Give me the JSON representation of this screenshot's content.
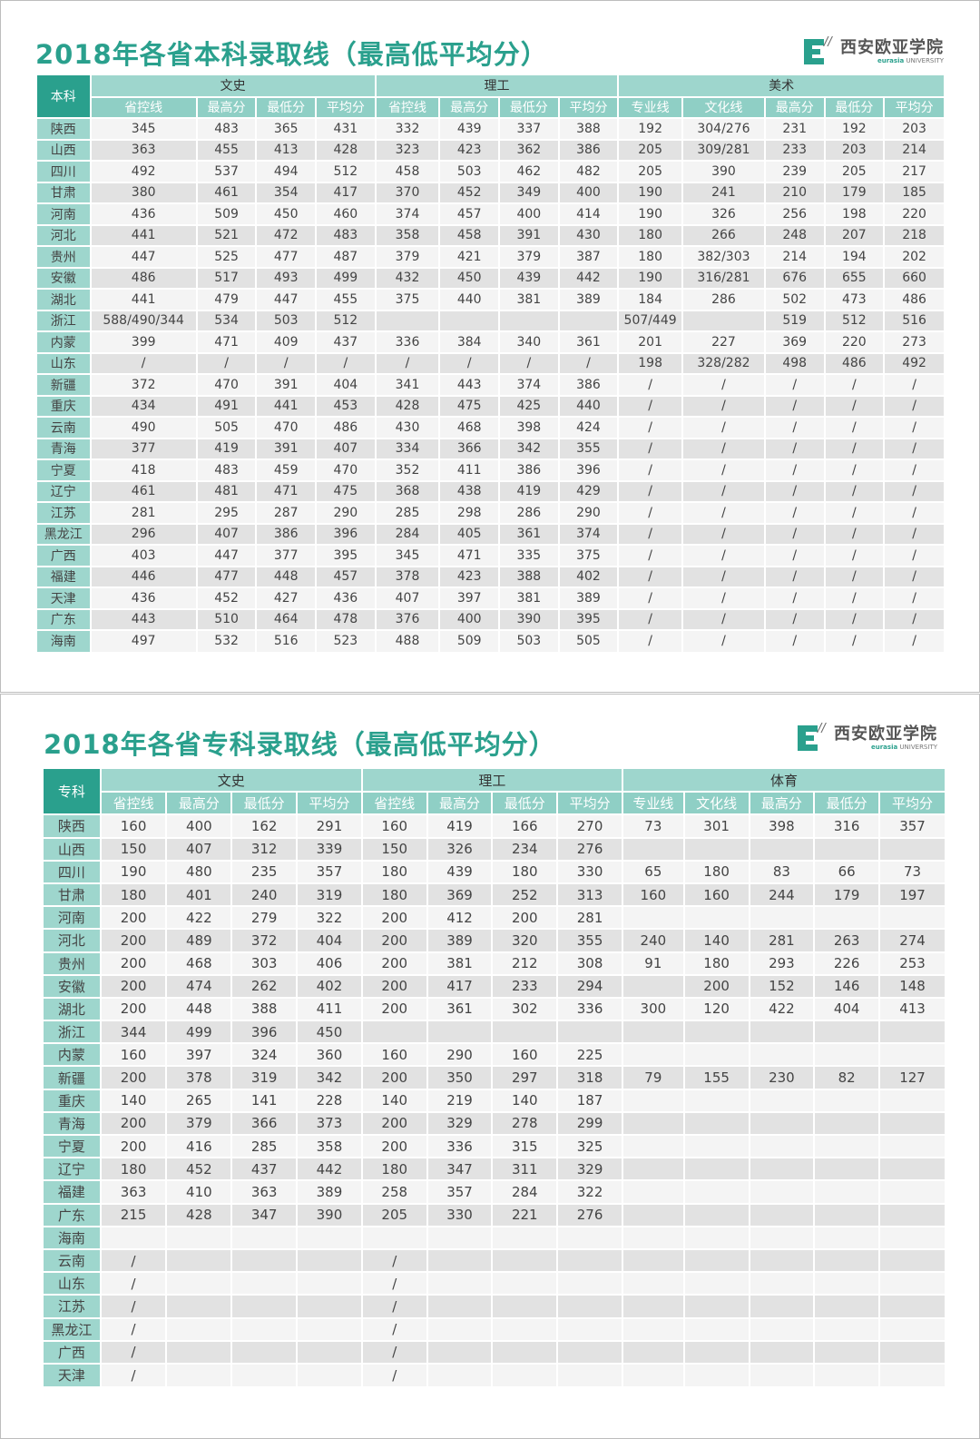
{
  "colors": {
    "teal": "#2aa08d",
    "teal_light": "#9ed6cd",
    "row_light": "#f4f4f4",
    "row_dark": "#e2e2e2"
  },
  "logo": {
    "cn": "西安欧亚学院",
    "en_brand": "eurasia",
    "en_rest": "UNIVERSITY"
  },
  "benke": {
    "title": "2018年各省本科录取线（最高低平均分）",
    "corner": "本科",
    "groups": [
      "文史",
      "理工",
      "美术"
    ],
    "subheaders": [
      "省控线",
      "最高分",
      "最低分",
      "平均分",
      "省控线",
      "最高分",
      "最低分",
      "平均分",
      "专业线",
      "文化线",
      "最高分",
      "最低分",
      "平均分"
    ],
    "rows": [
      [
        "陕西",
        "345",
        "483",
        "365",
        "431",
        "332",
        "439",
        "337",
        "388",
        "192",
        "304/276",
        "231",
        "192",
        "203"
      ],
      [
        "山西",
        "363",
        "455",
        "413",
        "428",
        "323",
        "423",
        "362",
        "386",
        "205",
        "309/281",
        "233",
        "203",
        "214"
      ],
      [
        "四川",
        "492",
        "537",
        "494",
        "512",
        "458",
        "503",
        "462",
        "482",
        "205",
        "390",
        "239",
        "205",
        "217"
      ],
      [
        "甘肃",
        "380",
        "461",
        "354",
        "417",
        "370",
        "452",
        "349",
        "400",
        "190",
        "241",
        "210",
        "179",
        "185"
      ],
      [
        "河南",
        "436",
        "509",
        "450",
        "460",
        "374",
        "457",
        "400",
        "414",
        "190",
        "326",
        "256",
        "198",
        "220"
      ],
      [
        "河北",
        "441",
        "521",
        "472",
        "483",
        "358",
        "458",
        "391",
        "430",
        "180",
        "266",
        "248",
        "207",
        "218"
      ],
      [
        "贵州",
        "447",
        "525",
        "477",
        "487",
        "379",
        "421",
        "379",
        "387",
        "180",
        "382/303",
        "214",
        "194",
        "202"
      ],
      [
        "安徽",
        "486",
        "517",
        "493",
        "499",
        "432",
        "450",
        "439",
        "442",
        "190",
        "316/281",
        "676",
        "655",
        "660"
      ],
      [
        "湖北",
        "441",
        "479",
        "447",
        "455",
        "375",
        "440",
        "381",
        "389",
        "184",
        "286",
        "502",
        "473",
        "486"
      ],
      [
        "浙江",
        "588/490/344",
        "534",
        "503",
        "512",
        "",
        "",
        "",
        "",
        "507/449",
        "",
        "519",
        "512",
        "516"
      ],
      [
        "内蒙",
        "399",
        "471",
        "409",
        "437",
        "336",
        "384",
        "340",
        "361",
        "201",
        "227",
        "369",
        "220",
        "273"
      ],
      [
        "山东",
        "/",
        "/",
        "/",
        "/",
        "/",
        "/",
        "/",
        "/",
        "198",
        "328/282",
        "498",
        "486",
        "492"
      ],
      [
        "新疆",
        "372",
        "470",
        "391",
        "404",
        "341",
        "443",
        "374",
        "386",
        "/",
        "/",
        "/",
        "/",
        "/"
      ],
      [
        "重庆",
        "434",
        "491",
        "441",
        "453",
        "428",
        "475",
        "425",
        "440",
        "/",
        "/",
        "/",
        "/",
        "/"
      ],
      [
        "云南",
        "490",
        "505",
        "470",
        "486",
        "430",
        "468",
        "398",
        "424",
        "/",
        "/",
        "/",
        "/",
        "/"
      ],
      [
        "青海",
        "377",
        "419",
        "391",
        "407",
        "334",
        "366",
        "342",
        "355",
        "/",
        "/",
        "/",
        "/",
        "/"
      ],
      [
        "宁夏",
        "418",
        "483",
        "459",
        "470",
        "352",
        "411",
        "386",
        "396",
        "/",
        "/",
        "/",
        "/",
        "/"
      ],
      [
        "辽宁",
        "461",
        "481",
        "471",
        "475",
        "368",
        "438",
        "419",
        "429",
        "/",
        "/",
        "/",
        "/",
        "/"
      ],
      [
        "江苏",
        "281",
        "295",
        "287",
        "290",
        "285",
        "298",
        "286",
        "290",
        "/",
        "/",
        "/",
        "/",
        "/"
      ],
      [
        "黑龙江",
        "296",
        "407",
        "386",
        "396",
        "284",
        "405",
        "361",
        "374",
        "/",
        "/",
        "/",
        "/",
        "/"
      ],
      [
        "广西",
        "403",
        "447",
        "377",
        "395",
        "345",
        "471",
        "335",
        "375",
        "/",
        "/",
        "/",
        "/",
        "/"
      ],
      [
        "福建",
        "446",
        "477",
        "448",
        "457",
        "378",
        "423",
        "388",
        "402",
        "/",
        "/",
        "/",
        "/",
        "/"
      ],
      [
        "天津",
        "436",
        "452",
        "427",
        "436",
        "407",
        "397",
        "381",
        "389",
        "/",
        "/",
        "/",
        "/",
        "/"
      ],
      [
        "广东",
        "443",
        "510",
        "464",
        "478",
        "376",
        "400",
        "390",
        "395",
        "/",
        "/",
        "/",
        "/",
        "/"
      ],
      [
        "海南",
        "497",
        "532",
        "516",
        "523",
        "488",
        "509",
        "503",
        "505",
        "/",
        "/",
        "/",
        "/",
        "/"
      ]
    ]
  },
  "zhuanke": {
    "title": "2018年各省专科录取线（最高低平均分）",
    "corner": "专科",
    "groups": [
      "文史",
      "理工",
      "体育"
    ],
    "subheaders": [
      "省控线",
      "最高分",
      "最低分",
      "平均分",
      "省控线",
      "最高分",
      "最低分",
      "平均分",
      "专业线",
      "文化线",
      "最高分",
      "最低分",
      "平均分"
    ],
    "rows": [
      [
        "陕西",
        "160",
        "400",
        "162",
        "291",
        "160",
        "419",
        "166",
        "270",
        "73",
        "301",
        "398",
        "316",
        "357"
      ],
      [
        "山西",
        "150",
        "407",
        "312",
        "339",
        "150",
        "326",
        "234",
        "276",
        "",
        "",
        "",
        "",
        ""
      ],
      [
        "四川",
        "190",
        "480",
        "235",
        "357",
        "180",
        "439",
        "180",
        "330",
        "65",
        "180",
        "83",
        "66",
        "73"
      ],
      [
        "甘肃",
        "180",
        "401",
        "240",
        "319",
        "180",
        "369",
        "252",
        "313",
        "160",
        "160",
        "244",
        "179",
        "197"
      ],
      [
        "河南",
        "200",
        "422",
        "279",
        "322",
        "200",
        "412",
        "200",
        "281",
        "",
        "",
        "",
        "",
        ""
      ],
      [
        "河北",
        "200",
        "489",
        "372",
        "404",
        "200",
        "389",
        "320",
        "355",
        "240",
        "140",
        "281",
        "263",
        "274"
      ],
      [
        "贵州",
        "200",
        "468",
        "303",
        "406",
        "200",
        "381",
        "212",
        "308",
        "91",
        "180",
        "293",
        "226",
        "253"
      ],
      [
        "安徽",
        "200",
        "474",
        "262",
        "402",
        "200",
        "417",
        "233",
        "294",
        "",
        "200",
        "152",
        "146",
        "148"
      ],
      [
        "湖北",
        "200",
        "448",
        "388",
        "411",
        "200",
        "361",
        "302",
        "336",
        "300",
        "120",
        "422",
        "404",
        "413"
      ],
      [
        "浙江",
        "344",
        "499",
        "396",
        "450",
        "",
        "",
        "",
        "",
        "",
        "",
        "",
        "",
        ""
      ],
      [
        "内蒙",
        "160",
        "397",
        "324",
        "360",
        "160",
        "290",
        "160",
        "225",
        "",
        "",
        "",
        "",
        ""
      ],
      [
        "新疆",
        "200",
        "378",
        "319",
        "342",
        "200",
        "350",
        "297",
        "318",
        "79",
        "155",
        "230",
        "82",
        "127"
      ],
      [
        "重庆",
        "140",
        "265",
        "141",
        "228",
        "140",
        "219",
        "140",
        "187",
        "",
        "",
        "",
        "",
        ""
      ],
      [
        "青海",
        "200",
        "379",
        "366",
        "373",
        "200",
        "329",
        "278",
        "299",
        "",
        "",
        "",
        "",
        ""
      ],
      [
        "宁夏",
        "200",
        "416",
        "285",
        "358",
        "200",
        "336",
        "315",
        "325",
        "",
        "",
        "",
        "",
        ""
      ],
      [
        "辽宁",
        "180",
        "452",
        "437",
        "442",
        "180",
        "347",
        "311",
        "329",
        "",
        "",
        "",
        "",
        ""
      ],
      [
        "福建",
        "363",
        "410",
        "363",
        "389",
        "258",
        "357",
        "284",
        "322",
        "",
        "",
        "",
        "",
        ""
      ],
      [
        "广东",
        "215",
        "428",
        "347",
        "390",
        "205",
        "330",
        "221",
        "276",
        "",
        "",
        "",
        "",
        ""
      ],
      [
        "海南",
        "",
        "",
        "",
        "",
        "",
        "",
        "",
        "",
        "",
        "",
        "",
        "",
        ""
      ],
      [
        "云南",
        "/",
        "",
        "",
        "",
        "/",
        "",
        "",
        "",
        "",
        "",
        "",
        "",
        ""
      ],
      [
        "山东",
        "/",
        "",
        "",
        "",
        "/",
        "",
        "",
        "",
        "",
        "",
        "",
        "",
        ""
      ],
      [
        "江苏",
        "/",
        "",
        "",
        "",
        "/",
        "",
        "",
        "",
        "",
        "",
        "",
        "",
        ""
      ],
      [
        "黑龙江",
        "/",
        "",
        "",
        "",
        "/",
        "",
        "",
        "",
        "",
        "",
        "",
        "",
        ""
      ],
      [
        "广西",
        "/",
        "",
        "",
        "",
        "/",
        "",
        "",
        "",
        "",
        "",
        "",
        "",
        ""
      ],
      [
        "天津",
        "/",
        "",
        "",
        "",
        "/",
        "",
        "",
        "",
        "",
        "",
        "",
        "",
        ""
      ]
    ]
  }
}
